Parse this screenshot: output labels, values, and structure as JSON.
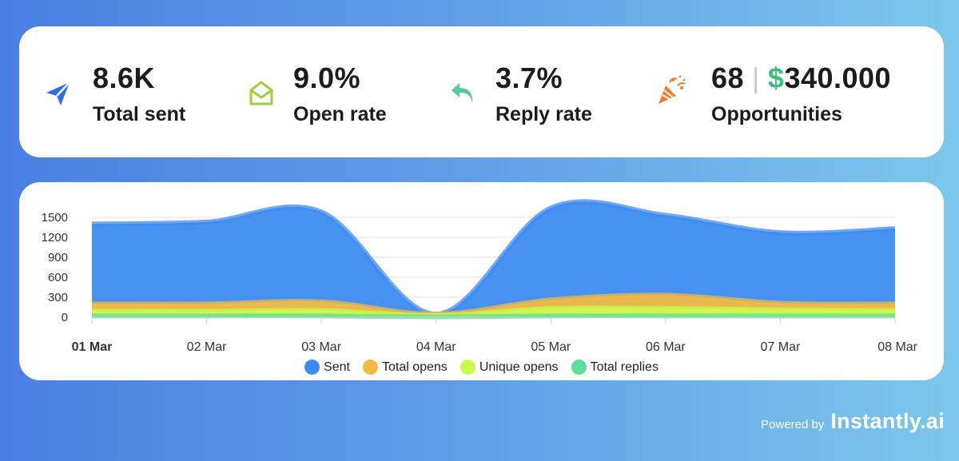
{
  "stats": [
    {
      "value": "8.6K",
      "label": "Total sent",
      "icon": "paper-plane-icon"
    },
    {
      "value": "9.0%",
      "label": "Open rate",
      "icon": "open-envelope-icon"
    },
    {
      "value": "3.7%",
      "label": "Reply rate",
      "icon": "reply-arrow-icon"
    },
    {
      "count": "68",
      "separator": "|",
      "currency": "$",
      "amount": "340.000",
      "label": "Opportunities",
      "icon": "party-popper-icon"
    }
  ],
  "colors": {
    "sent": "#3d8bf0",
    "total_opens": "#f0bb45",
    "unique_opens": "#cdf94b",
    "total_replies": "#5fdf97"
  },
  "chart_data": {
    "type": "area",
    "categories": [
      "01 Mar",
      "02 Mar",
      "03 Mar",
      "04 Mar",
      "05 Mar",
      "06 Mar",
      "07 Mar",
      "08 Mar"
    ],
    "series": [
      {
        "name": "Sent",
        "values": [
          1200,
          1230,
          1350,
          0,
          1380,
          1200,
          1060,
          1130
        ]
      },
      {
        "name": "Total opens",
        "values": [
          110,
          110,
          130,
          20,
          130,
          200,
          100,
          100
        ]
      },
      {
        "name": "Unique opens",
        "values": [
          70,
          70,
          80,
          20,
          110,
          110,
          90,
          80
        ]
      },
      {
        "name": "Total replies",
        "values": [
          20,
          20,
          20,
          5,
          20,
          20,
          20,
          20
        ]
      }
    ],
    "yticks": [
      "0",
      "300",
      "600",
      "900",
      "1200",
      "1500"
    ],
    "ylim": [
      0,
      1500
    ],
    "stacked": true,
    "grid": true,
    "legend": "bottom"
  },
  "footer": {
    "powered_by": "Powered by",
    "brand": "Instantly.ai"
  }
}
